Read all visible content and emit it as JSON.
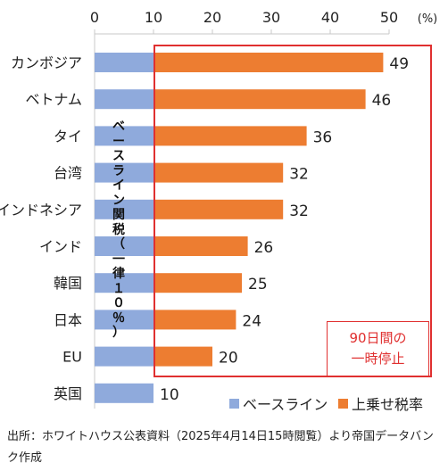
{
  "chart_data": {
    "type": "bar",
    "orientation": "horizontal",
    "stacked": true,
    "categories": [
      "カンボジア",
      "ベトナム",
      "タイ",
      "台湾",
      "インドネシア",
      "インド",
      "韓国",
      "日本",
      "EU",
      "英国"
    ],
    "series": [
      {
        "name": "ベースライン",
        "values": [
          10,
          10,
          10,
          10,
          10,
          10,
          10,
          10,
          10,
          10
        ],
        "color": "#8faadc"
      },
      {
        "name": "上乗せ税率",
        "values": [
          39,
          36,
          26,
          22,
          22,
          16,
          15,
          14,
          10,
          0
        ],
        "color": "#ed7d31"
      }
    ],
    "totals": [
      49,
      46,
      36,
      32,
      32,
      26,
      25,
      24,
      20,
      10
    ],
    "data_labels": [
      "49",
      "46",
      "36",
      "32",
      "32",
      "26",
      "25",
      "24",
      "20",
      "10"
    ],
    "x_ticks": [
      "0",
      "10",
      "20",
      "30",
      "40",
      "50"
    ],
    "x_unit": "(%)",
    "xlim": [
      0,
      50
    ],
    "axis_position": "top",
    "grid": false,
    "legend_position": "bottom-right",
    "baseline_annotation": [
      "ベ",
      "ー",
      "ス",
      "ラ",
      "イ",
      "ン",
      "関",
      "税",
      "（",
      "一",
      "律",
      "１",
      "０",
      "％",
      "）"
    ],
    "highlight_box_color": "#e03030",
    "note_lines": [
      "90日間の",
      "一時停止"
    ]
  },
  "source_text": "出所：ホワイトハウス公表資料（2025年4月14日15時閲覧）より帝国データバンク作成"
}
